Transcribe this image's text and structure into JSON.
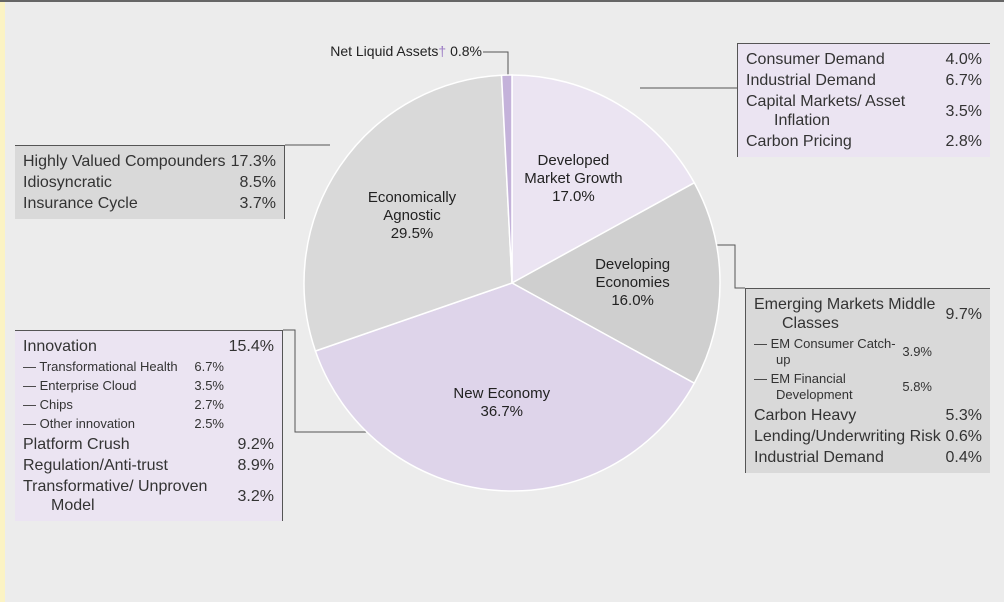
{
  "chart_data": {
    "type": "pie",
    "categories": [
      "Developed Market Growth",
      "Developing Economies",
      "New Economy",
      "Economically Agnostic",
      "Net Liquid Assets"
    ],
    "values": [
      17.0,
      16.0,
      36.7,
      29.5,
      0.8
    ],
    "value_labels": [
      "17.0%",
      "16.0%",
      "36.7%",
      "29.5%",
      "0.8%"
    ],
    "colors": [
      "#ebe4f2",
      "#cfcfcf",
      "#ded4ea",
      "#d9d9d9",
      "#c4b2da"
    ],
    "footnote_mark": "†"
  },
  "callouts": [
    {
      "items": [
        {
          "label": "Consumer Demand",
          "value": "4.0%"
        },
        {
          "label": "Industrial Demand",
          "value": "6.7%"
        },
        {
          "label": "Capital Markets/ Asset Inflation",
          "value": "3.5%"
        },
        {
          "label": "Carbon Pricing",
          "value": "2.8%"
        }
      ]
    },
    {
      "items": [
        {
          "label": "Emerging Markets Middle Classes",
          "value": "9.7%",
          "items": [
            {
              "label": "— EM Consumer Catch-up",
              "value": "3.9%"
            },
            {
              "label": "— EM Financial Development",
              "value": "5.8%"
            }
          ]
        },
        {
          "label": "Carbon Heavy",
          "value": "5.3%"
        },
        {
          "label": "Lending/Underwriting Risk",
          "value": "0.6%"
        },
        {
          "label": "Industrial Demand",
          "value": "0.4%"
        }
      ]
    },
    {
      "items": [
        {
          "label": "Innovation",
          "value": "15.4%",
          "items": [
            {
              "label": "— Transformational Health",
              "value": "6.7%"
            },
            {
              "label": "— Enterprise Cloud",
              "value": "3.5%"
            },
            {
              "label": "— Chips",
              "value": "2.7%"
            },
            {
              "label": "— Other innovation",
              "value": "2.5%"
            }
          ]
        },
        {
          "label": "Platform Crush",
          "value": "9.2%"
        },
        {
          "label": "Regulation/Anti-trust",
          "value": "8.9%"
        },
        {
          "label": "Transformative/ Unproven Model",
          "value": "3.2%"
        }
      ]
    },
    {
      "items": [
        {
          "label": "Highly Valued Compounders",
          "value": "17.3%"
        },
        {
          "label": "Idiosyncratic",
          "value": "8.5%"
        },
        {
          "label": "Insurance Cycle",
          "value": "3.7%"
        }
      ]
    }
  ]
}
